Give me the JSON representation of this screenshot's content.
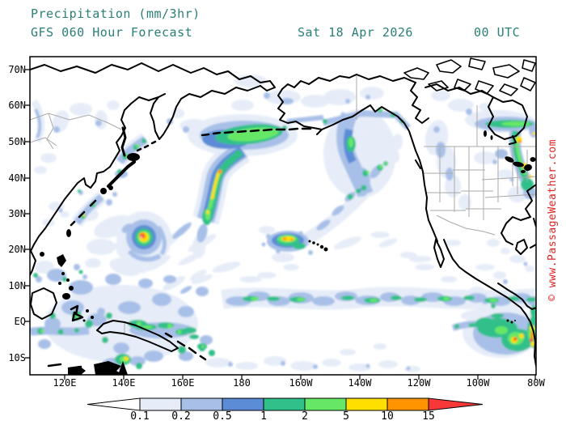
{
  "header": {
    "title": "Precipitation (mm/3hr)",
    "model_line": "GFS 060 Hour Forecast",
    "valid_date": "Sat 18 Apr 2026",
    "valid_time": "00 UTC",
    "text_color": "#2a7f76"
  },
  "watermark": {
    "text": "© www.PassageWeather.com",
    "color": "#e02424"
  },
  "map": {
    "lat_labels": [
      "70N",
      "60N",
      "50N",
      "40N",
      "30N",
      "20N",
      "10N",
      "EQ",
      "10S"
    ],
    "lon_labels": [
      "120E",
      "140E",
      "160E",
      "180",
      "160W",
      "140W",
      "120W",
      "100W",
      "80W"
    ]
  },
  "colorbar": {
    "unit": "mm/3hr",
    "tick_labels": [
      "0.1",
      "0.2",
      "0.5",
      "1",
      "2",
      "5",
      "10",
      "15"
    ],
    "segment_colors": [
      "#e6edf8",
      "#a8c0e8",
      "#5c8cd6",
      "#30c08a",
      "#66e866",
      "#ffdf00",
      "#ff9400"
    ],
    "under_arrow_color": "#ffffff",
    "over_arrow_color": "#f83838"
  }
}
